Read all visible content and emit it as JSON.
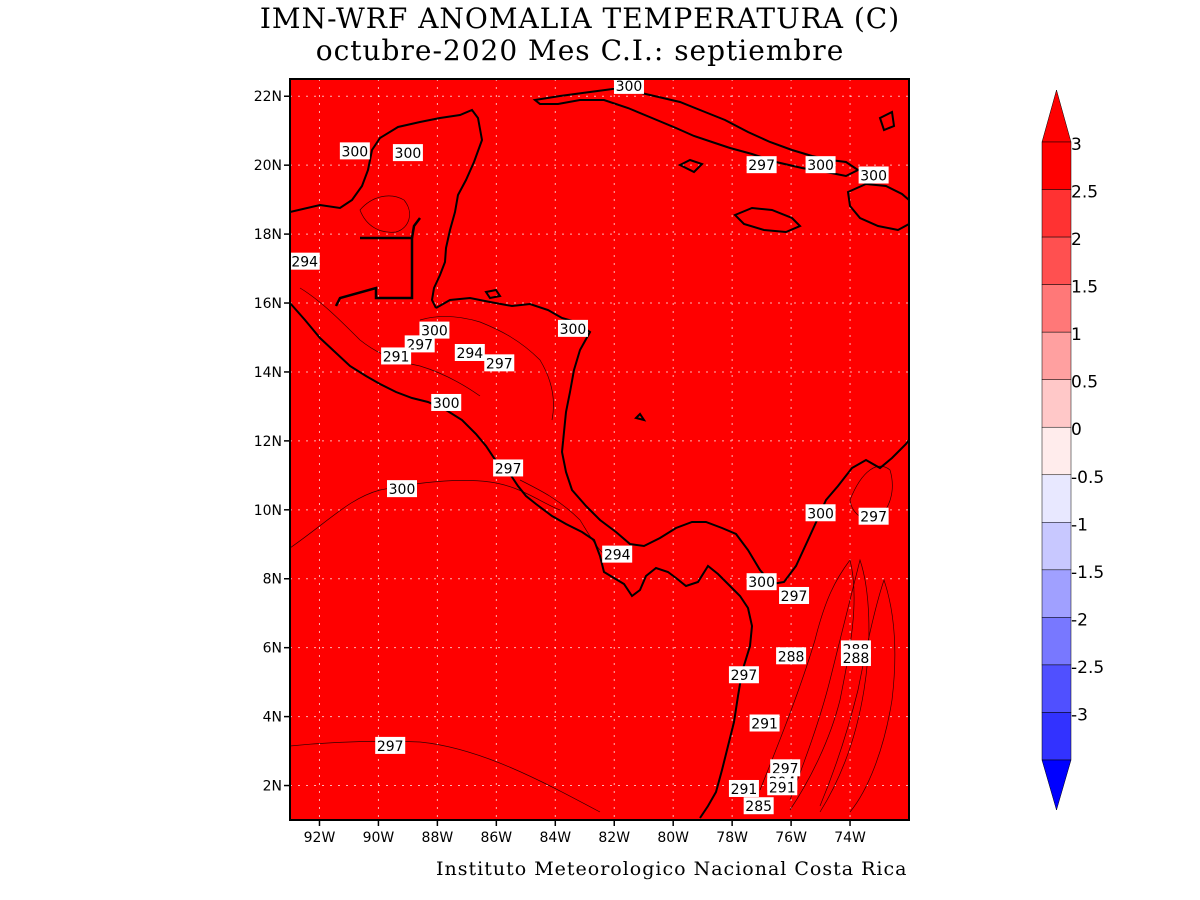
{
  "title_line1": "IMN-WRF  ANOMALIA TEMPERATURA (C)",
  "title_line2": "octubre-2020 Mes C.I.: septiembre",
  "footer": "Instituto Meteorologico Nacional Costa Rica",
  "map": {
    "fill_color": "#ff0000",
    "lon_range": [
      -93,
      -72
    ],
    "lat_range": [
      1,
      22.5
    ],
    "lat_ticks": [
      {
        "value": 22,
        "label": "22N"
      },
      {
        "value": 20,
        "label": "20N"
      },
      {
        "value": 18,
        "label": "18N"
      },
      {
        "value": 16,
        "label": "16N"
      },
      {
        "value": 14,
        "label": "14N"
      },
      {
        "value": 12,
        "label": "12N"
      },
      {
        "value": 10,
        "label": "10N"
      },
      {
        "value": 8,
        "label": "8N"
      },
      {
        "value": 6,
        "label": "6N"
      },
      {
        "value": 4,
        "label": "4N"
      },
      {
        "value": 2,
        "label": "2N"
      }
    ],
    "lon_ticks": [
      {
        "value": -92,
        "label": "92W"
      },
      {
        "value": -90,
        "label": "90W"
      },
      {
        "value": -88,
        "label": "88W"
      },
      {
        "value": -86,
        "label": "86W"
      },
      {
        "value": -84,
        "label": "84W"
      },
      {
        "value": -82,
        "label": "82W"
      },
      {
        "value": -80,
        "label": "80W"
      },
      {
        "value": -78,
        "label": "78W"
      },
      {
        "value": -76,
        "label": "76W"
      },
      {
        "value": -74,
        "label": "74W"
      }
    ],
    "contour_labels": [
      {
        "text": "300",
        "lon": -81.5,
        "lat": 22.3
      },
      {
        "text": "300",
        "lon": -90.8,
        "lat": 20.4
      },
      {
        "text": "300",
        "lon": -89.0,
        "lat": 20.35
      },
      {
        "text": "297",
        "lon": -77.0,
        "lat": 20.0
      },
      {
        "text": "300",
        "lon": -75.0,
        "lat": 20.0
      },
      {
        "text": "300",
        "lon": -73.2,
        "lat": 19.7
      },
      {
        "text": "294",
        "lon": -92.5,
        "lat": 17.2
      },
      {
        "text": "300",
        "lon": -88.1,
        "lat": 15.2
      },
      {
        "text": "297",
        "lon": -88.6,
        "lat": 14.8
      },
      {
        "text": "291",
        "lon": -89.4,
        "lat": 14.45
      },
      {
        "text": "294",
        "lon": -86.9,
        "lat": 14.55
      },
      {
        "text": "297",
        "lon": -85.9,
        "lat": 14.25
      },
      {
        "text": "300",
        "lon": -83.4,
        "lat": 15.25
      },
      {
        "text": "300",
        "lon": -87.7,
        "lat": 13.1
      },
      {
        "text": "297",
        "lon": -85.6,
        "lat": 11.2
      },
      {
        "text": "300",
        "lon": -89.2,
        "lat": 10.6
      },
      {
        "text": "294",
        "lon": -81.9,
        "lat": 8.7
      },
      {
        "text": "300",
        "lon": -75.0,
        "lat": 9.9
      },
      {
        "text": "297",
        "lon": -73.2,
        "lat": 9.8
      },
      {
        "text": "300",
        "lon": -77.0,
        "lat": 7.9
      },
      {
        "text": "297",
        "lon": -75.9,
        "lat": 7.5
      },
      {
        "text": "288",
        "lon": -76.0,
        "lat": 5.75
      },
      {
        "text": "288",
        "lon": -73.8,
        "lat": 5.95
      },
      {
        "text": "288",
        "lon": -73.8,
        "lat": 5.7
      },
      {
        "text": "297",
        "lon": -77.6,
        "lat": 5.2
      },
      {
        "text": "291",
        "lon": -76.9,
        "lat": 3.8
      },
      {
        "text": "297",
        "lon": -89.6,
        "lat": 3.15
      },
      {
        "text": "297",
        "lon": -76.2,
        "lat": 2.5
      },
      {
        "text": "294",
        "lon": -76.3,
        "lat": 2.1
      },
      {
        "text": "291",
        "lon": -76.3,
        "lat": 1.95
      },
      {
        "text": "291",
        "lon": -77.6,
        "lat": 1.9
      },
      {
        "text": "285",
        "lon": -77.1,
        "lat": 1.4
      }
    ]
  },
  "colorbar": {
    "levels": [
      {
        "label": "3",
        "color": "#ff0000"
      },
      {
        "label": "2.5",
        "color": "#ff3232"
      },
      {
        "label": "2",
        "color": "#ff5050"
      },
      {
        "label": "1.5",
        "color": "#ff7878"
      },
      {
        "label": "1",
        "color": "#ffa0a0"
      },
      {
        "label": "0.5",
        "color": "#ffc8c8"
      },
      {
        "label": "0",
        "color": "#ffecec"
      },
      {
        "label": "-0.5",
        "color": "#e8e8ff"
      },
      {
        "label": "-1",
        "color": "#c8c8ff"
      },
      {
        "label": "-1.5",
        "color": "#a0a0ff"
      },
      {
        "label": "-2",
        "color": "#7878ff"
      },
      {
        "label": "-2.5",
        "color": "#5050ff"
      },
      {
        "label": "-3",
        "color": "#3232ff"
      }
    ],
    "top_arrow_color": "#ff0000",
    "bottom_arrow_color": "#0000ff"
  }
}
